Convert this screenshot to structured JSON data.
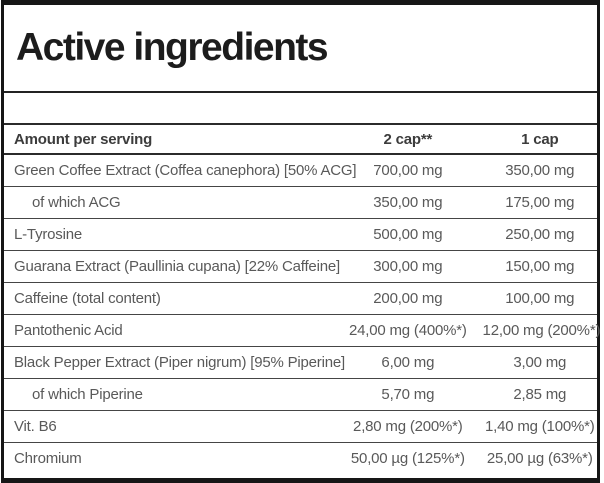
{
  "title": "Active ingredients",
  "table": {
    "columns": [
      "Amount per serving",
      "2 cap**",
      "1 cap"
    ],
    "rows": [
      {
        "name": "Green Coffee Extract (Coffea canephora) [50% ACG]",
        "two_cap": "700,00 mg",
        "one_cap": "350,00 mg",
        "indent": false
      },
      {
        "name": "of which ACG",
        "two_cap": "350,00 mg",
        "one_cap": "175,00 mg",
        "indent": true
      },
      {
        "name": "L-Tyrosine",
        "two_cap": "500,00 mg",
        "one_cap": "250,00 mg",
        "indent": false
      },
      {
        "name": "Guarana Extract (Paullinia cupana) [22% Caffeine]",
        "two_cap": "300,00 mg",
        "one_cap": "150,00 mg",
        "indent": false
      },
      {
        "name": "Caffeine (total content)",
        "two_cap": "200,00 mg",
        "one_cap": "100,00 mg",
        "indent": false
      },
      {
        "name": "Pantothenic Acid",
        "two_cap": "24,00 mg (400%*)",
        "one_cap": "12,00 mg (200%*)",
        "indent": false
      },
      {
        "name": "Black Pepper Extract (Piper nigrum) [95% Piperine]",
        "two_cap": "6,00 mg",
        "one_cap": "3,00 mg",
        "indent": false
      },
      {
        "name": "of which Piperine",
        "two_cap": "5,70 mg",
        "one_cap": "2,85 mg",
        "indent": true
      },
      {
        "name": "Vit. B6",
        "two_cap": "2,80 mg (200%*)",
        "one_cap": "1,40 mg (100%*)",
        "indent": false
      },
      {
        "name": "Chromium",
        "two_cap": "50,00 µg (125%*)",
        "one_cap": "25,00 µg (63%*)",
        "indent": false
      }
    ]
  },
  "colors": {
    "panel_border": "#161616",
    "title_text": "#1c1c1c",
    "header_text": "#3c3c3c",
    "row_text": "#595959",
    "row_separator": "#454545",
    "background": "#ffffff"
  }
}
